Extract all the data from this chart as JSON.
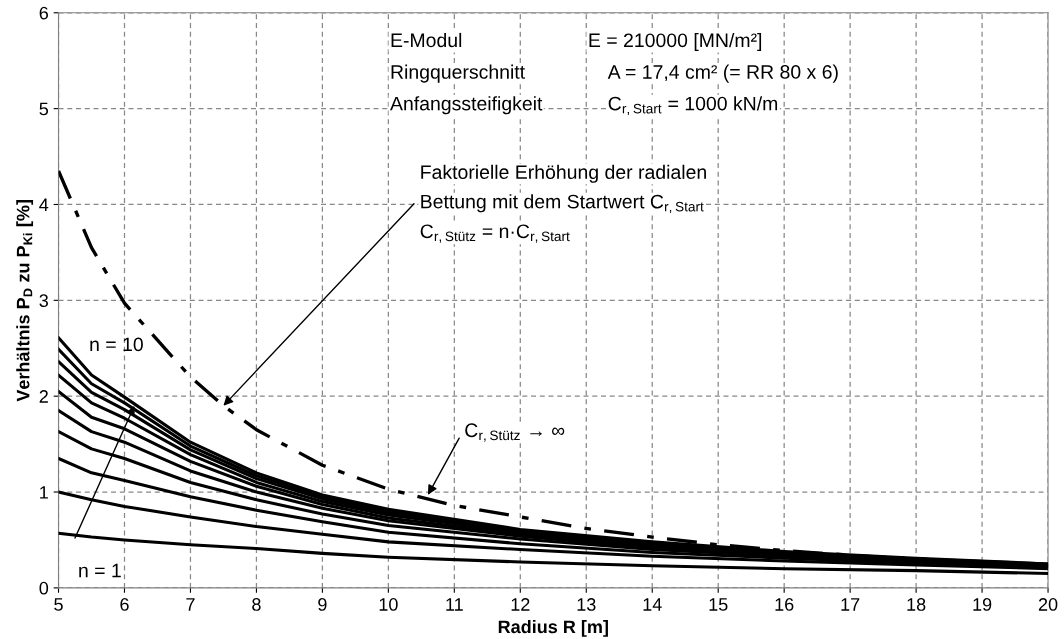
{
  "chart_data": {
    "type": "line",
    "xlabel": "Radius R [m]",
    "ylabel": "Verhältnis P$_{D}$ zu P$_{Ki}$ [%]",
    "xlim": [
      5,
      20
    ],
    "xticks": [
      5,
      6,
      7,
      8,
      9,
      10,
      11,
      12,
      13,
      14,
      15,
      16,
      17,
      18,
      19,
      20
    ],
    "ylim": [
      0,
      6
    ],
    "yticks": [
      0,
      1,
      2,
      3,
      4,
      5,
      6
    ],
    "grid": true,
    "legend": false,
    "marker": "none",
    "x": [
      5,
      5.5,
      6,
      7,
      8,
      9,
      10,
      12,
      14,
      16,
      18,
      20
    ],
    "series": [
      {
        "color": "#000000",
        "line_style": "solid",
        "values": [
          0.57,
          0.53,
          0.5,
          0.45,
          0.41,
          0.36,
          0.32,
          0.27,
          0.23,
          0.2,
          0.18,
          0.15
        ]
      },
      {
        "color": "#000000",
        "line_style": "solid",
        "values": [
          1.0,
          0.92,
          0.85,
          0.74,
          0.64,
          0.56,
          0.48,
          0.4,
          0.33,
          0.28,
          0.24,
          0.2
        ]
      },
      {
        "color": "#000000",
        "line_style": "solid",
        "values": [
          1.35,
          1.2,
          1.12,
          0.95,
          0.81,
          0.69,
          0.58,
          0.46,
          0.37,
          0.31,
          0.26,
          0.21
        ]
      },
      {
        "color": "#000000",
        "line_style": "solid",
        "values": [
          1.63,
          1.45,
          1.35,
          1.1,
          0.92,
          0.77,
          0.65,
          0.51,
          0.4,
          0.33,
          0.27,
          0.22
        ]
      },
      {
        "color": "#000000",
        "line_style": "solid",
        "values": [
          1.85,
          1.63,
          1.52,
          1.22,
          1.0,
          0.83,
          0.7,
          0.54,
          0.42,
          0.34,
          0.28,
          0.23
        ]
      },
      {
        "color": "#000000",
        "line_style": "solid",
        "values": [
          2.05,
          1.78,
          1.66,
          1.32,
          1.06,
          0.87,
          0.73,
          0.56,
          0.44,
          0.35,
          0.29,
          0.23
        ]
      },
      {
        "color": "#000000",
        "line_style": "solid",
        "values": [
          2.22,
          1.93,
          1.77,
          1.39,
          1.1,
          0.9,
          0.76,
          0.58,
          0.45,
          0.36,
          0.29,
          0.24
        ]
      },
      {
        "color": "#000000",
        "line_style": "solid",
        "values": [
          2.36,
          2.04,
          1.86,
          1.44,
          1.14,
          0.93,
          0.78,
          0.59,
          0.46,
          0.37,
          0.3,
          0.24
        ]
      },
      {
        "color": "#000000",
        "line_style": "solid",
        "values": [
          2.49,
          2.13,
          1.93,
          1.48,
          1.17,
          0.95,
          0.8,
          0.6,
          0.47,
          0.37,
          0.3,
          0.25
        ]
      },
      {
        "color": "#000000",
        "line_style": "solid",
        "values": [
          2.61,
          2.22,
          1.99,
          1.52,
          1.2,
          0.97,
          0.82,
          0.61,
          0.48,
          0.38,
          0.31,
          0.25
        ]
      },
      {
        "color": "#000000",
        "line_style": "dashed",
        "x": [
          5,
          5.5,
          6,
          7,
          7.5,
          8,
          9,
          10,
          11,
          12,
          13,
          14,
          15,
          16,
          17,
          18,
          19,
          20
        ],
        "values": [
          4.35,
          3.55,
          2.97,
          2.2,
          1.9,
          1.65,
          1.28,
          1.03,
          0.86,
          0.74,
          0.62,
          0.53,
          0.45,
          0.39,
          0.34,
          0.3,
          0.27,
          0.24
        ]
      }
    ],
    "annotations": [
      "E-Modul",
      "E = 210000 [MN/m²]",
      "Ringquerschnitt",
      "A = 17,4 cm² (= RR 80 x 6)",
      "Anfangssteifigkeit",
      "C$_{r,Start}$ = 1000 kN/m",
      "Faktorielle Erhöhung der radialen",
      {
        "text": "Bettung mit dem Startwert C$_{r,Start}$",
        "x": 7.5,
        "y": 1.9
      },
      "C$_{r,Stütz}$ = n·C$_{r,Start}$",
      {
        "text": "C$_{r,Stütz}$ → ∞",
        "x": 10.6,
        "y": 0.97
      },
      {
        "text": "n = 10",
        "x": 5,
        "y": 2.61
      },
      {
        "text": "n = 1",
        "x": 5,
        "y": 0.57
      }
    ]
  }
}
